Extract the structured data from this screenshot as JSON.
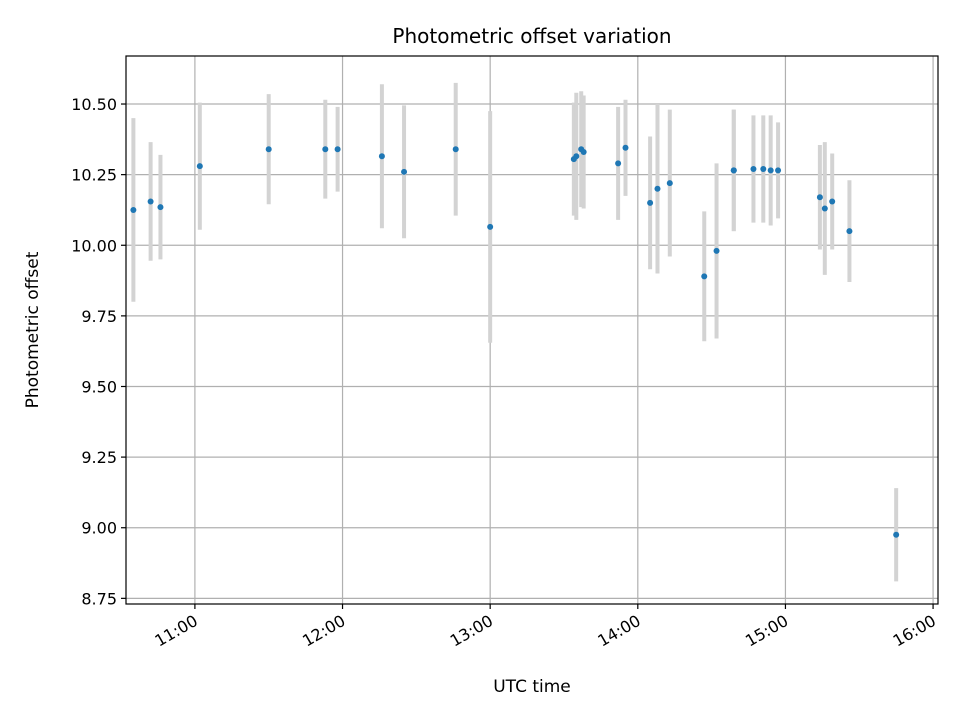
{
  "chart_data": {
    "type": "scatter",
    "title": "Photometric offset variation",
    "xlabel": "UTC time",
    "ylabel": "Photometric offset",
    "x_ticks": [
      "11:00",
      "12:00",
      "13:00",
      "14:00",
      "15:00",
      "16:00"
    ],
    "y_ticks": [
      "8.75",
      "9.00",
      "9.25",
      "9.50",
      "9.75",
      "10.00",
      "10.25",
      "10.50"
    ],
    "xlim": [
      "10:32",
      "16:02"
    ],
    "ylim": [
      8.73,
      10.67
    ],
    "grid": true,
    "colors": {
      "point": "#1f77b4",
      "errorbar": "#d3d3d3",
      "grid": "#b0b0b0"
    },
    "series": [
      {
        "points": [
          {
            "x": "10:35",
            "y": 10.125,
            "err": 0.325
          },
          {
            "x": "10:42",
            "y": 10.155,
            "err": 0.21
          },
          {
            "x": "10:46",
            "y": 10.135,
            "err": 0.185
          },
          {
            "x": "11:02",
            "y": 10.28,
            "err": 0.225
          },
          {
            "x": "11:30",
            "y": 10.34,
            "err": 0.195
          },
          {
            "x": "11:53",
            "y": 10.34,
            "err": 0.175
          },
          {
            "x": "11:58",
            "y": 10.34,
            "err": 0.15
          },
          {
            "x": "12:16",
            "y": 10.315,
            "err": 0.255
          },
          {
            "x": "12:25",
            "y": 10.26,
            "err": 0.235
          },
          {
            "x": "12:46",
            "y": 10.34,
            "err": 0.235
          },
          {
            "x": "13:00",
            "y": 10.065,
            "err": 0.41
          },
          {
            "x": "13:34",
            "y": 10.305,
            "err": 0.2
          },
          {
            "x": "13:35",
            "y": 10.315,
            "err": 0.225
          },
          {
            "x": "13:37",
            "y": 10.34,
            "err": 0.205
          },
          {
            "x": "13:38",
            "y": 10.33,
            "err": 0.2
          },
          {
            "x": "13:52",
            "y": 10.29,
            "err": 0.2
          },
          {
            "x": "13:55",
            "y": 10.345,
            "err": 0.17
          },
          {
            "x": "14:05",
            "y": 10.15,
            "err": 0.235
          },
          {
            "x": "14:08",
            "y": 10.2,
            "err": 0.3
          },
          {
            "x": "14:13",
            "y": 10.22,
            "err": 0.26
          },
          {
            "x": "14:27",
            "y": 9.89,
            "err": 0.23
          },
          {
            "x": "14:32",
            "y": 9.98,
            "err": 0.31
          },
          {
            "x": "14:39",
            "y": 10.265,
            "err": 0.215
          },
          {
            "x": "14:39",
            "y": 10.265,
            "err": 0.215
          },
          {
            "x": "14:47",
            "y": 10.27,
            "err": 0.19
          },
          {
            "x": "14:51",
            "y": 10.27,
            "err": 0.19
          },
          {
            "x": "14:54",
            "y": 10.265,
            "err": 0.195
          },
          {
            "x": "14:57",
            "y": 10.265,
            "err": 0.17
          },
          {
            "x": "15:14",
            "y": 10.17,
            "err": 0.185
          },
          {
            "x": "15:16",
            "y": 10.13,
            "err": 0.235
          },
          {
            "x": "15:19",
            "y": 10.155,
            "err": 0.17
          },
          {
            "x": "15:26",
            "y": 10.05,
            "err": 0.18
          },
          {
            "x": "15:45",
            "y": 8.975,
            "err": 0.165
          }
        ]
      }
    ]
  }
}
